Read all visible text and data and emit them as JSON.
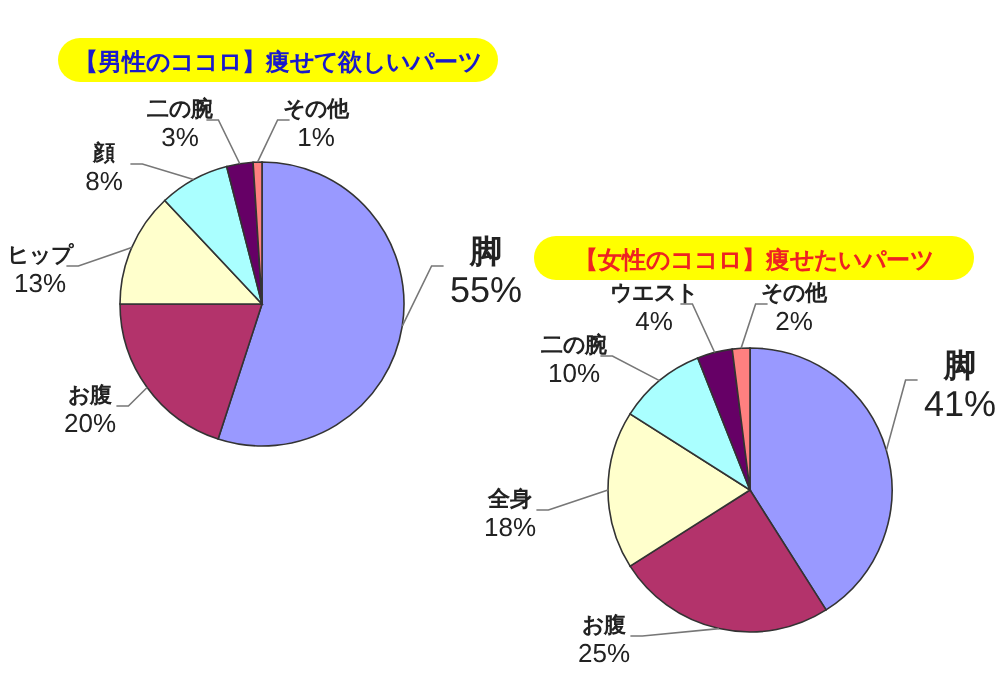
{
  "chart_data": [
    {
      "type": "pie",
      "title": "【男性のココロ】痩せて欲しいパーツ",
      "categories": [
        "脚",
        "お腹",
        "ヒップ",
        "顔",
        "二の腕",
        "その他"
      ],
      "values": [
        55,
        20,
        13,
        8,
        3,
        1
      ],
      "colors": [
        "#9999ff",
        "#b3336b",
        "#ffffcc",
        "#aaffff",
        "#660066",
        "#ff8080"
      ],
      "value_labels": [
        "55%",
        "20%",
        "13%",
        "8%",
        "3%",
        "1%"
      ]
    },
    {
      "type": "pie",
      "title": "【女性のココロ】痩せたいパーツ",
      "categories": [
        "脚",
        "お腹",
        "全身",
        "二の腕",
        "ウエスト",
        "その他"
      ],
      "values": [
        41,
        25,
        18,
        10,
        4,
        2
      ],
      "colors": [
        "#9999ff",
        "#b3336b",
        "#ffffcc",
        "#aaffff",
        "#660066",
        "#ff8080"
      ],
      "value_labels": [
        "41%",
        "25%",
        "18%",
        "10%",
        "4%",
        "2%"
      ]
    }
  ]
}
